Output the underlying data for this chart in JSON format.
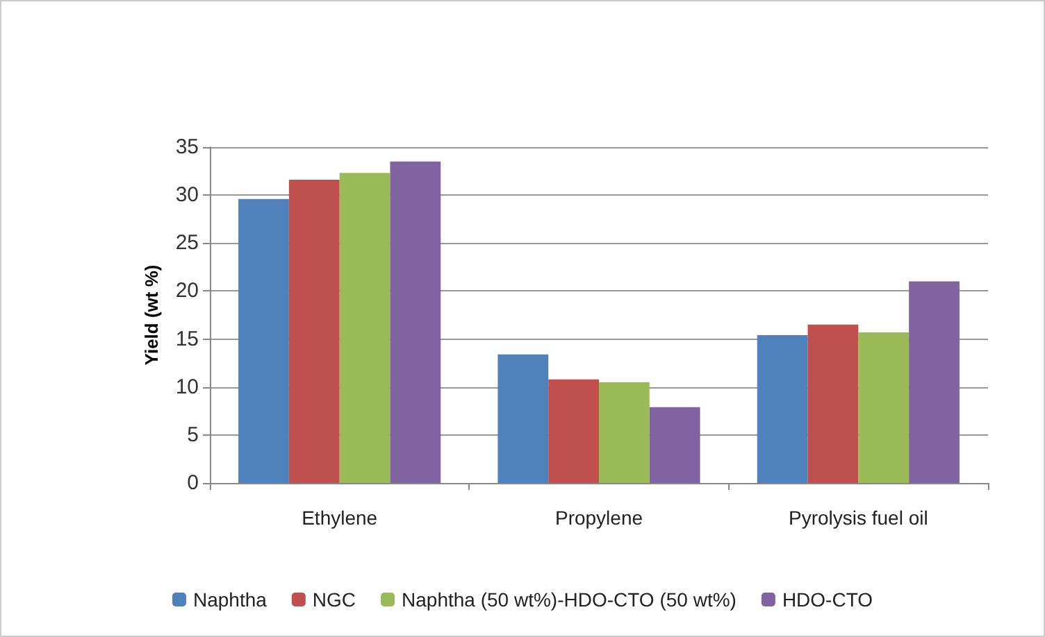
{
  "chart_data": {
    "type": "bar",
    "ylabel": "Yield (wt %)",
    "categories": [
      "Ethylene",
      "Propylene",
      "Pyrolysis fuel oil"
    ],
    "series": [
      {
        "name": "Naphtha",
        "color": "#4f81bd",
        "values": [
          29.6,
          13.4,
          15.4
        ]
      },
      {
        "name": "NGC",
        "color": "#c0504d",
        "values": [
          31.6,
          10.8,
          16.5
        ]
      },
      {
        "name": "Naphtha (50 wt%)-HDO-CTO (50 wt%)",
        "color": "#9bbb59",
        "values": [
          32.3,
          10.5,
          15.7
        ]
      },
      {
        "name": "HDO-CTO",
        "color": "#8064a2",
        "values": [
          33.5,
          7.9,
          21.0
        ]
      }
    ],
    "ylim": [
      0,
      35
    ],
    "yticks": [
      0,
      5,
      10,
      15,
      20,
      25,
      30,
      35
    ],
    "grid": "y",
    "legend": "bottom"
  }
}
